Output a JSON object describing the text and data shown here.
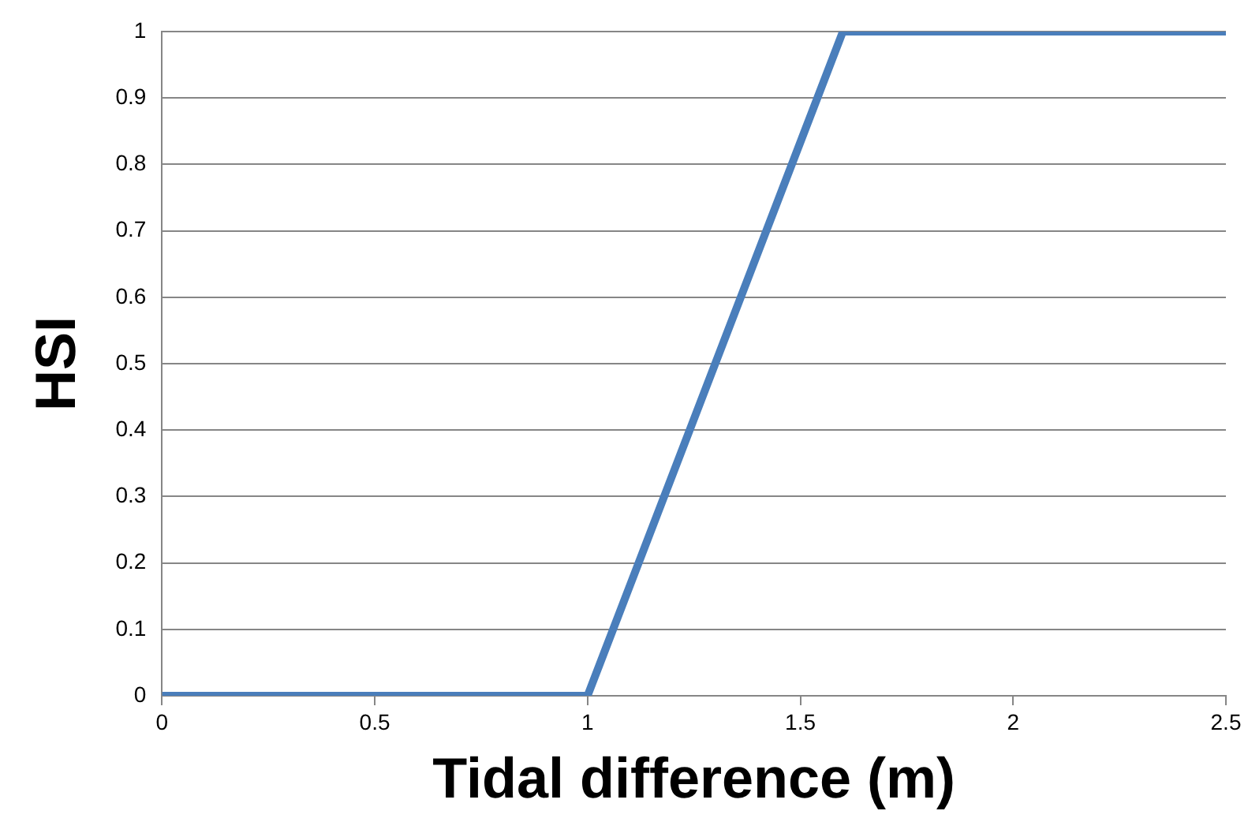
{
  "chart_data": {
    "type": "line",
    "xlabel": "Tidal difference (m)",
    "ylabel": "HSI",
    "x": [
      0,
      1,
      1.6,
      2.5
    ],
    "series": [
      {
        "color": "#4a7ebb",
        "values": [
          0,
          0,
          1,
          1
        ]
      }
    ],
    "xlim": [
      0,
      2.5
    ],
    "xticks": [
      0,
      0.5,
      1,
      1.5,
      2,
      2.5
    ],
    "ylim": [
      0,
      1
    ],
    "yticks": [
      0,
      0.1,
      0.2,
      0.3,
      0.4,
      0.5,
      0.6,
      0.7,
      0.8,
      0.9,
      1
    ],
    "grid": "y",
    "legend": false,
    "marker": "none",
    "line_style": "solid"
  }
}
